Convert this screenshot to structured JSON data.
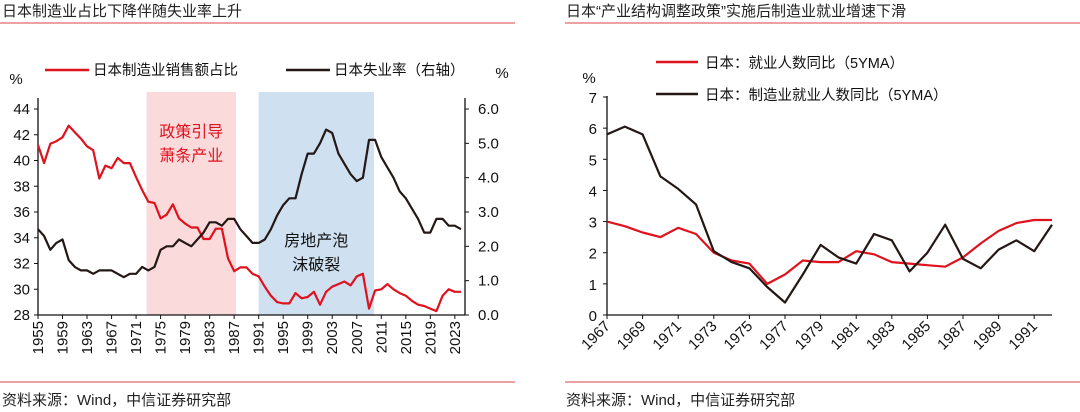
{
  "left_panel": {
    "title": "日本制造业占比下降伴随失业率上升",
    "source": "资料来源：Wind，中信证券研究部"
  },
  "right_panel": {
    "title": "日本“产业结构调整政策”实施后制造业就业增速下滑",
    "source": "资料来源：Wind，中信证券研究部"
  },
  "colors": {
    "red": "#e0121e",
    "black": "#231815",
    "pink_shade": "#fadadb",
    "blue_shade": "#cfe0f1",
    "rule": "#e06a6a"
  },
  "chart_data": [
    {
      "type": "line",
      "title": "日本制造业占比下降伴随失业率上升",
      "ylabel": "%",
      "y2label": "%",
      "ylim": [
        28,
        44
      ],
      "y2lim": [
        0,
        6
      ],
      "yticks": [
        "28",
        "30",
        "32",
        "34",
        "36",
        "38",
        "40",
        "42",
        "44"
      ],
      "y2ticks": [
        "0.0",
        "1.0",
        "2.0",
        "3.0",
        "4.0",
        "5.0",
        "6.0"
      ],
      "xticks": [
        "1955",
        "1959",
        "1963",
        "1967",
        "1971",
        "1975",
        "1979",
        "1983",
        "1987",
        "1991",
        "1995",
        "1999",
        "2003",
        "2007",
        "2011",
        "2015",
        "2019",
        "2023"
      ],
      "x": [
        1955,
        1956,
        1957,
        1958,
        1959,
        1960,
        1961,
        1962,
        1963,
        1964,
        1965,
        1966,
        1967,
        1968,
        1969,
        1970,
        1971,
        1972,
        1973,
        1974,
        1975,
        1976,
        1977,
        1978,
        1979,
        1980,
        1981,
        1982,
        1983,
        1984,
        1985,
        1986,
        1987,
        1988,
        1989,
        1990,
        1991,
        1992,
        1993,
        1994,
        1995,
        1996,
        1997,
        1998,
        1999,
        2000,
        2001,
        2002,
        2003,
        2004,
        2005,
        2006,
        2007,
        2008,
        2009,
        2010,
        2011,
        2012,
        2013,
        2014,
        2015,
        2016,
        2017,
        2018,
        2019,
        2020,
        2021,
        2022,
        2023,
        2024
      ],
      "series": [
        {
          "name": "日本制造业销售额占比",
          "axis": "left",
          "color": "#e0121e",
          "values": [
            41.2,
            39.8,
            41.3,
            41.5,
            41.8,
            42.7,
            42.2,
            41.7,
            41.1,
            40.8,
            38.6,
            39.6,
            39.4,
            40.2,
            39.8,
            39.8,
            38.7,
            37.7,
            36.8,
            36.7,
            35.5,
            35.8,
            36.6,
            35.5,
            35.1,
            34.8,
            34.8,
            33.9,
            33.9,
            34.7,
            34.7,
            32.4,
            31.4,
            31.7,
            31.7,
            31.2,
            31.0,
            30.2,
            29.5,
            29.0,
            28.9,
            28.9,
            29.7,
            29.3,
            29.4,
            29.8,
            28.8,
            29.8,
            30.2,
            30.4,
            30.6,
            30.3,
            31.0,
            31.2,
            28.5,
            29.9,
            30.0,
            30.4,
            30.0,
            29.7,
            29.5,
            29.1,
            28.8,
            28.7,
            28.5,
            28.3,
            29.5,
            30.0,
            29.8,
            29.8
          ]
        },
        {
          "name": "日本失业率（右轴）",
          "axis": "right",
          "color": "#231815",
          "values": [
            2.5,
            2.3,
            1.9,
            2.1,
            2.2,
            1.6,
            1.4,
            1.3,
            1.3,
            1.2,
            1.3,
            1.3,
            1.3,
            1.2,
            1.1,
            1.2,
            1.2,
            1.4,
            1.3,
            1.4,
            1.9,
            2.0,
            2.0,
            2.2,
            2.1,
            2.0,
            2.2,
            2.4,
            2.7,
            2.7,
            2.6,
            2.8,
            2.8,
            2.5,
            2.3,
            2.1,
            2.1,
            2.2,
            2.5,
            2.9,
            3.2,
            3.4,
            3.4,
            4.1,
            4.7,
            4.7,
            5.0,
            5.4,
            5.3,
            4.7,
            4.4,
            4.1,
            3.9,
            4.0,
            5.1,
            5.1,
            4.6,
            4.3,
            4.0,
            3.6,
            3.4,
            3.1,
            2.8,
            2.4,
            2.4,
            2.8,
            2.8,
            2.6,
            2.6,
            2.5
          ]
        }
      ],
      "annotations": [
        {
          "text": "政策引导\n萧条产业",
          "span": [
            1972.7,
            1987.3
          ],
          "shade": "pink"
        },
        {
          "text": "房地产泡\n沫破裂",
          "span": [
            1991,
            2009.8
          ],
          "shade": "blue"
        }
      ],
      "legend": "top",
      "grid": false
    },
    {
      "type": "line",
      "title": "日本“产业结构调整政策”实施后制造业就业增速下滑",
      "ylabel": "%",
      "ylim": [
        0,
        7
      ],
      "yticks": [
        "0",
        "1",
        "2",
        "3",
        "4",
        "5",
        "6",
        "7"
      ],
      "xticks": [
        "1967",
        "1969",
        "1971",
        "1973",
        "1975",
        "1977",
        "1979",
        "1981",
        "1983",
        "1985",
        "1987",
        "1989",
        "1991"
      ],
      "x": [
        1967,
        1968,
        1969,
        1970,
        1971,
        1972,
        1973,
        1974,
        1975,
        1976,
        1977,
        1978,
        1979,
        1980,
        1981,
        1982,
        1983,
        1984,
        1985,
        1986,
        1987,
        1988,
        1989,
        1990,
        1991,
        1992
      ],
      "series": [
        {
          "name": "日本：就业人数同比（5YMA）",
          "color": "#e0121e",
          "values": [
            3.0,
            2.85,
            2.65,
            2.5,
            2.8,
            2.6,
            2.0,
            1.75,
            1.65,
            1.0,
            1.3,
            1.75,
            1.7,
            1.7,
            2.05,
            1.95,
            1.7,
            1.65,
            1.6,
            1.55,
            1.85,
            2.3,
            2.7,
            2.95,
            3.05,
            3.05
          ]
        },
        {
          "name": "日本：制造业就业人数同比（5YMA）",
          "color": "#231815",
          "values": [
            5.8,
            6.05,
            5.8,
            4.45,
            4.05,
            3.55,
            2.05,
            1.7,
            1.5,
            0.9,
            0.4,
            1.3,
            2.25,
            1.85,
            1.65,
            2.6,
            2.4,
            1.4,
            2.0,
            2.9,
            1.8,
            1.5,
            2.1,
            2.4,
            2.05,
            2.9
          ]
        }
      ],
      "legend": "top",
      "grid": false
    }
  ]
}
